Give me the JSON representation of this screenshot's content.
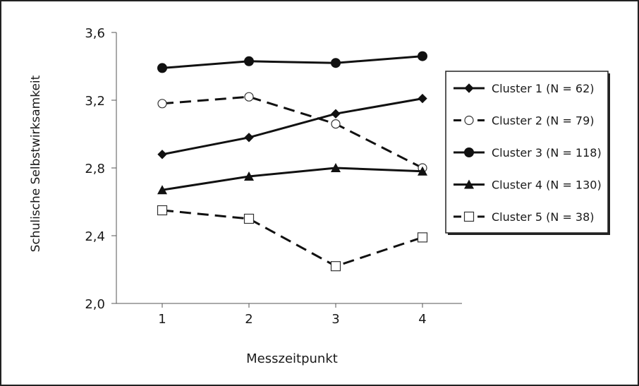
{
  "chart_data": {
    "type": "line",
    "xlabel": "Messzeitpunkt",
    "ylabel": "Schulische Selbstwirksamkeit",
    "x": [
      "1",
      "2",
      "3",
      "4"
    ],
    "ylim": [
      2.0,
      3.6
    ],
    "yticks": [
      "2,0",
      "2,4",
      "2,8",
      "3,2",
      "3,6"
    ],
    "grid": false,
    "legend_position": "right",
    "series": [
      {
        "name": "Cluster 1 (N = 62)",
        "marker": "diamond-filled",
        "dash": "solid",
        "values": [
          2.88,
          2.98,
          3.12,
          3.21
        ]
      },
      {
        "name": "Cluster 2 (N = 79)",
        "marker": "circle-open",
        "dash": "dashed",
        "values": [
          3.18,
          3.22,
          3.06,
          2.8
        ]
      },
      {
        "name": "Cluster 3 (N = 118)",
        "marker": "circle-filled",
        "dash": "solid",
        "values": [
          3.39,
          3.43,
          3.42,
          3.46
        ]
      },
      {
        "name": "Cluster 4 (N = 130)",
        "marker": "triangle-filled",
        "dash": "solid",
        "values": [
          2.67,
          2.75,
          2.8,
          2.78
        ]
      },
      {
        "name": "Cluster 5 (N = 38)",
        "marker": "square-open",
        "dash": "dashed",
        "values": [
          2.55,
          2.5,
          2.22,
          2.39
        ]
      }
    ]
  }
}
